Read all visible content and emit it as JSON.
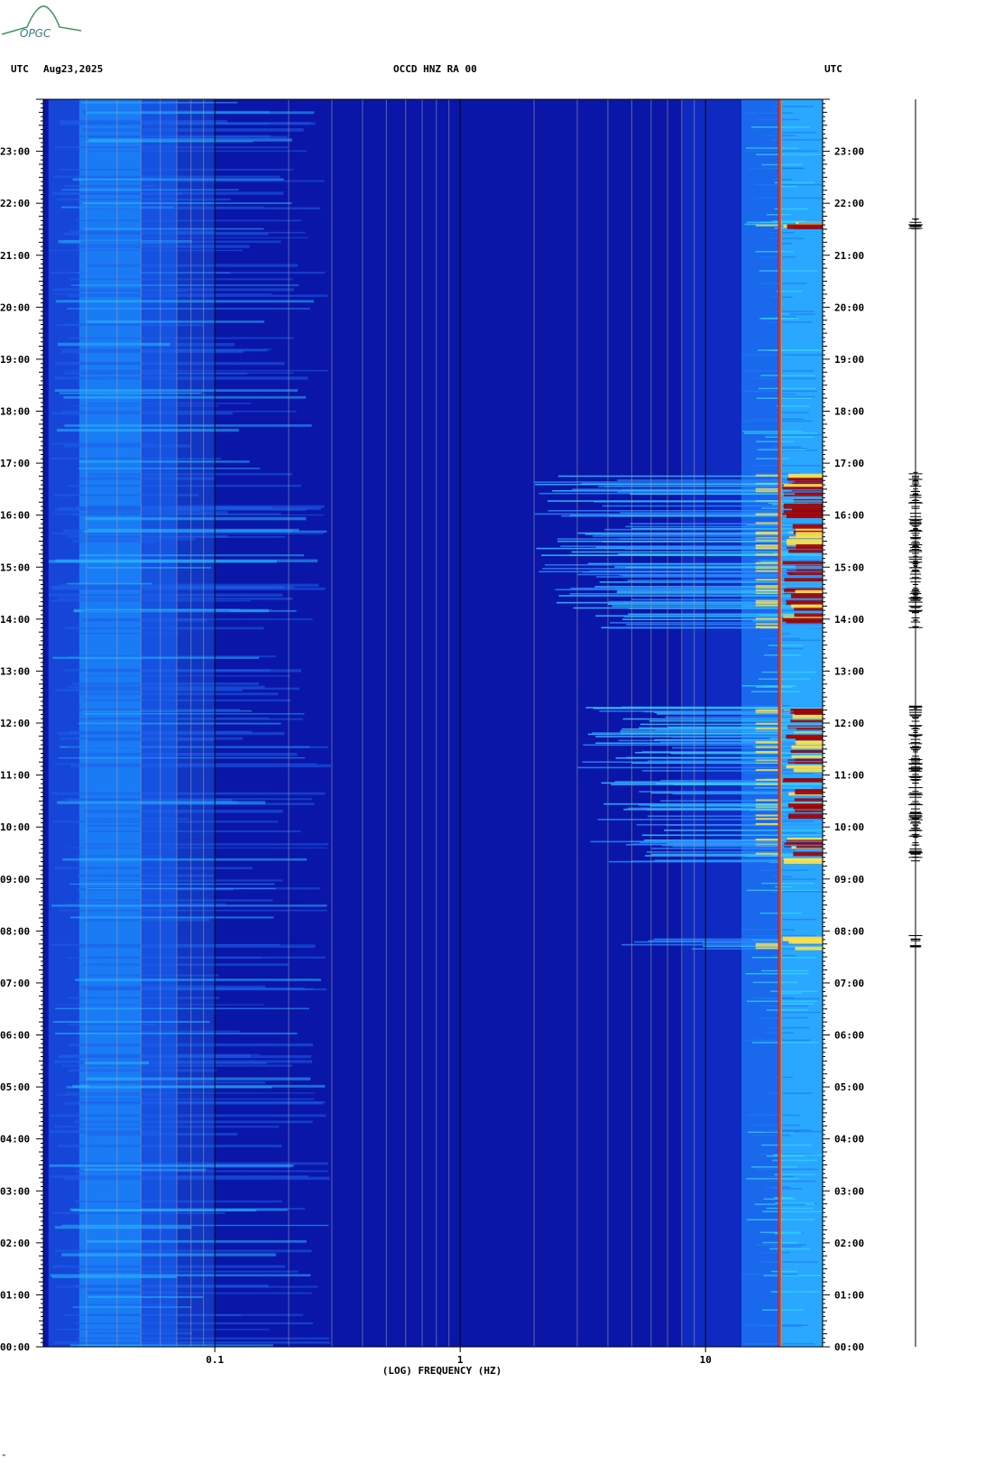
{
  "header": {
    "left_tz": "UTC",
    "date": "Aug23,2025",
    "station": "OCCD HNZ RA 00",
    "right_tz": "UTC"
  },
  "logo_text": "OPGC",
  "footer_mark": "\"",
  "colors": {
    "background_low": "#0a16a8",
    "mid": "#1a6cf0",
    "high": "#33d6ff",
    "very_high": "#ffe24a",
    "peak": "#a00000",
    "line": "#d01010",
    "logo": "#3a9a5a"
  },
  "chart_data": {
    "type": "heatmap",
    "title": "OCCD HNZ RA 00",
    "xlabel": "(LOG) FREQUENCY (HZ)",
    "x_scale": "log",
    "xlim": [
      0.02,
      30
    ],
    "x_ticks": [
      {
        "value": 0.1,
        "label": "0.1"
      },
      {
        "value": 1,
        "label": "1"
      },
      {
        "value": 10,
        "label": "10"
      }
    ],
    "y_range_hours": [
      0,
      24
    ],
    "y_ticks": [
      "00:00",
      "01:00",
      "02:00",
      "03:00",
      "04:00",
      "05:00",
      "06:00",
      "07:00",
      "08:00",
      "09:00",
      "10:00",
      "11:00",
      "12:00",
      "13:00",
      "14:00",
      "15:00",
      "16:00",
      "17:00",
      "18:00",
      "19:00",
      "20:00",
      "21:00",
      "22:00",
      "23:00"
    ],
    "grid": true,
    "persistent_line_hz": 20,
    "event_periods_utc": [
      {
        "start": "07:40",
        "end": "07:55",
        "band_hz": [
          4,
          30
        ]
      },
      {
        "start": "09:20",
        "end": "12:20",
        "band_hz": [
          3,
          30
        ]
      },
      {
        "start": "13:50",
        "end": "16:50",
        "band_hz": [
          2,
          30
        ]
      },
      {
        "start": "21:30",
        "end": "21:45",
        "band_hz": [
          12,
          30
        ]
      }
    ]
  }
}
